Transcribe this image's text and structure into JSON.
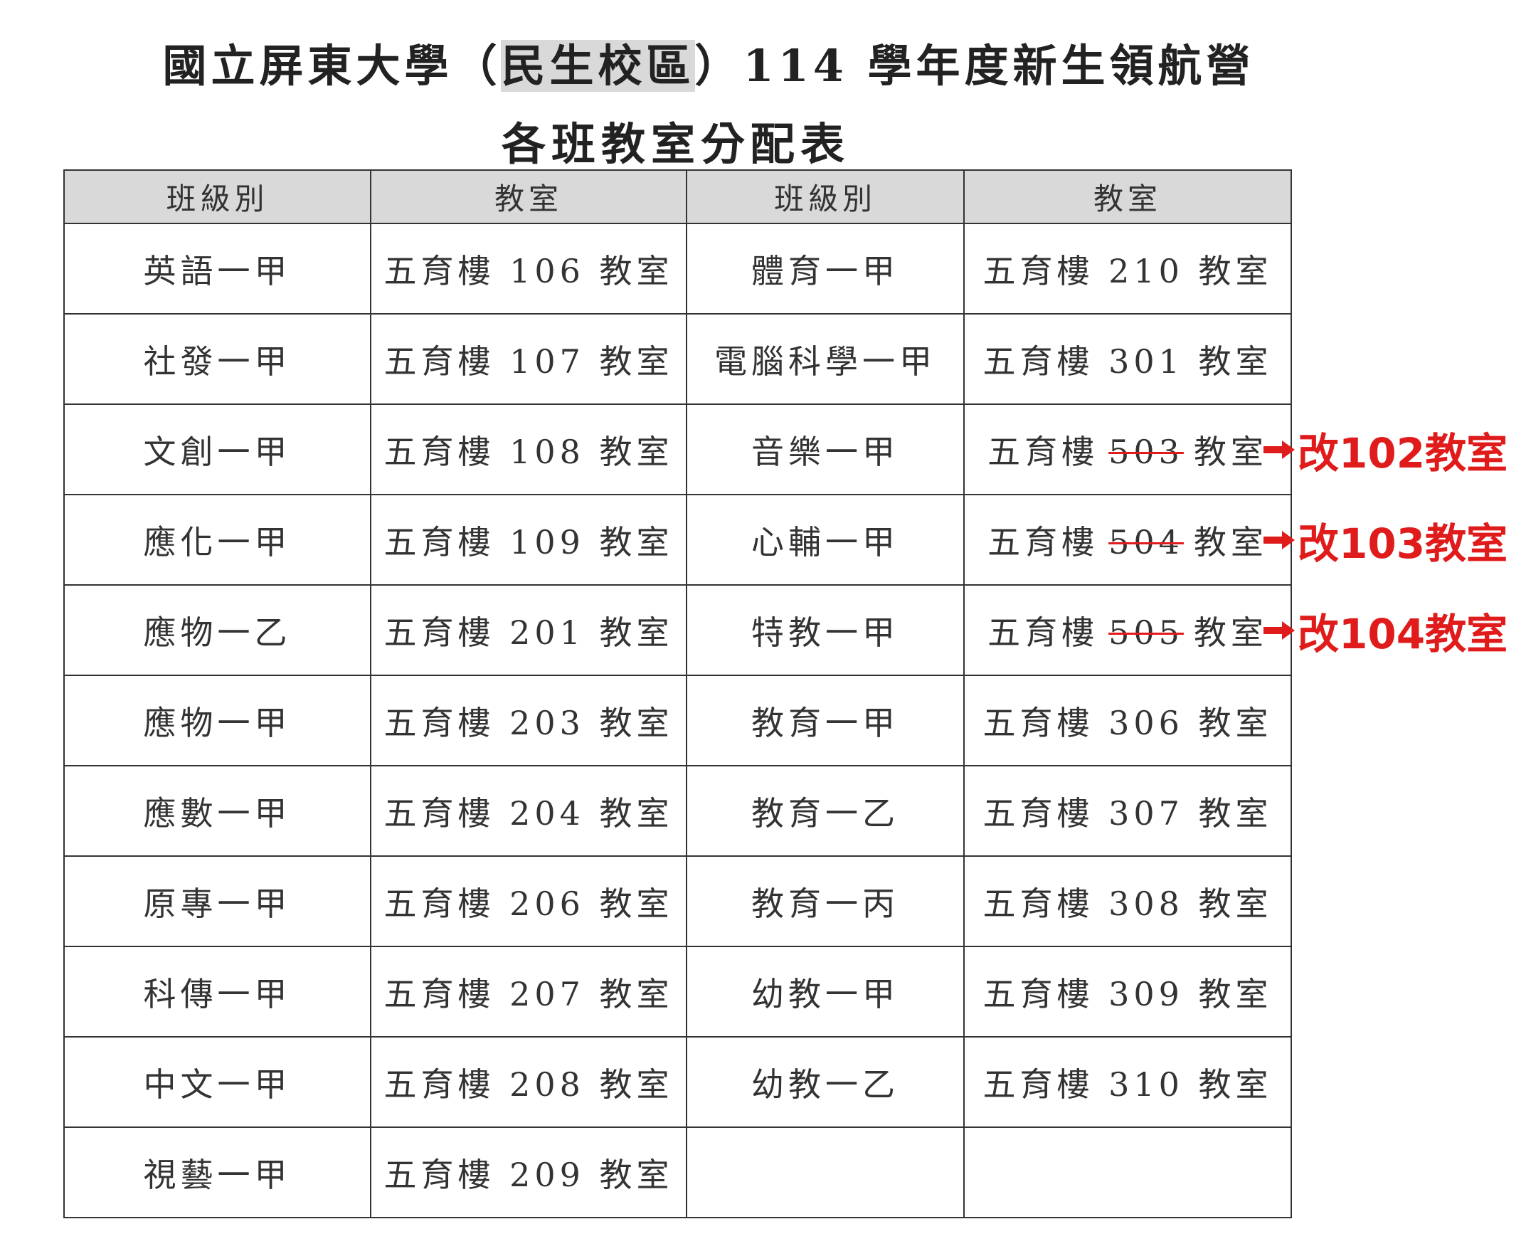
{
  "header": {
    "title_before": "國立屏東大學（",
    "title_highlight": "民生校區",
    "title_after": "）114 學年度新生領航營",
    "subtitle": "各班教室分配表"
  },
  "table": {
    "columns": [
      "班級別",
      "教室",
      "班級別",
      "教室"
    ],
    "rows": [
      [
        "英語一甲",
        "五育樓 106 教室",
        "體育一甲",
        "五育樓 210 教室"
      ],
      [
        "社發一甲",
        "五育樓 107 教室",
        "電腦科學一甲",
        "五育樓 301 教室"
      ],
      [
        "文創一甲",
        "五育樓 108 教室",
        "音樂一甲",
        {
          "building": "五育樓",
          "old": "503",
          "room": "教室",
          "correction": "改102教室"
        }
      ],
      [
        "應化一甲",
        "五育樓 109 教室",
        "心輔一甲",
        {
          "building": "五育樓",
          "old": "504",
          "room": "教室",
          "correction": "改103教室"
        }
      ],
      [
        "應物一乙",
        "五育樓 201 教室",
        "特教一甲",
        {
          "building": "五育樓",
          "old": "505",
          "room": "教室",
          "correction": "改104教室"
        }
      ],
      [
        "應物一甲",
        "五育樓 203 教室",
        "教育一甲",
        "五育樓 306 教室"
      ],
      [
        "應數一甲",
        "五育樓 204 教室",
        "教育一乙",
        "五育樓 307 教室"
      ],
      [
        "原專一甲",
        "五育樓 206 教室",
        "教育一丙",
        "五育樓 308 教室"
      ],
      [
        "科傳一甲",
        "五育樓 207 教室",
        "幼教一甲",
        "五育樓 309 教室"
      ],
      [
        "中文一甲",
        "五育樓 208 教室",
        "幼教一乙",
        "五育樓 310 教室"
      ],
      [
        "視藝一甲",
        "五育樓 209 教室"
      ]
    ]
  }
}
